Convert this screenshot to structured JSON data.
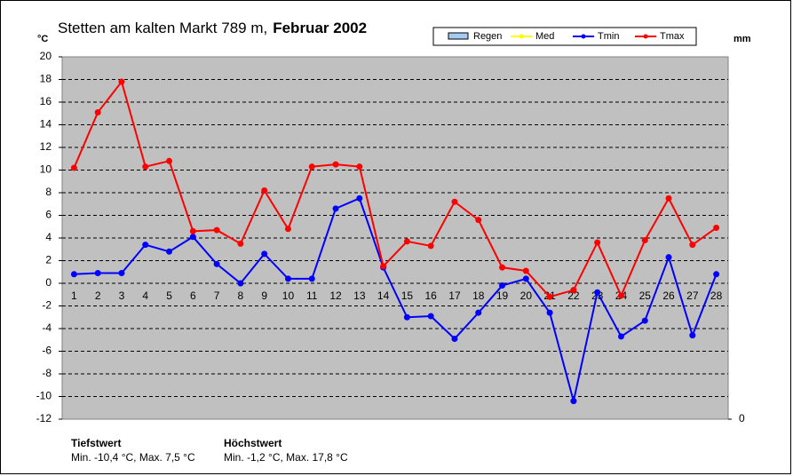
{
  "chart_data": {
    "type": "line",
    "title": [
      "Stetten am kalten Markt  789 m,",
      "Februar 2002"
    ],
    "ylabel": "°C",
    "y2label": "mm",
    "categories": [
      "1",
      "2",
      "3",
      "4",
      "5",
      "6",
      "7",
      "8",
      "9",
      "10",
      "11",
      "12",
      "13",
      "14",
      "15",
      "16",
      "17",
      "18",
      "19",
      "20",
      "21",
      "22",
      "23",
      "24",
      "25",
      "26",
      "27",
      "28"
    ],
    "series": [
      {
        "name": "Regen",
        "type": "bar",
        "color": "#a6caf0",
        "axis": "y2",
        "values": [
          null,
          null,
          null,
          null,
          null,
          null,
          null,
          null,
          null,
          null,
          null,
          null,
          null,
          null,
          null,
          null,
          null,
          null,
          null,
          null,
          null,
          null,
          null,
          null,
          null,
          null,
          null,
          null
        ]
      },
      {
        "name": "Med",
        "type": "line",
        "color": "#ffff00",
        "values": [
          null,
          null,
          null,
          null,
          null,
          null,
          null,
          null,
          null,
          null,
          null,
          null,
          null,
          null,
          null,
          null,
          null,
          null,
          null,
          null,
          null,
          null,
          null,
          null,
          null,
          null,
          null,
          null
        ]
      },
      {
        "name": "Tmin",
        "type": "line",
        "color": "#0000ff",
        "values": [
          0.8,
          0.9,
          0.9,
          3.4,
          2.8,
          4.1,
          1.7,
          0.0,
          2.6,
          0.4,
          0.4,
          6.6,
          7.5,
          1.4,
          -3.0,
          -2.9,
          -4.9,
          -2.6,
          -0.2,
          0.4,
          -2.6,
          -10.4,
          -0.8,
          -4.7,
          -3.3,
          2.3,
          -4.6,
          0.8
        ]
      },
      {
        "name": "Tmax",
        "type": "line",
        "color": "#ff0000",
        "values": [
          10.2,
          15.1,
          17.8,
          10.3,
          10.8,
          4.6,
          4.7,
          3.5,
          8.2,
          4.8,
          10.3,
          10.5,
          10.3,
          1.5,
          3.7,
          3.3,
          7.2,
          5.6,
          1.4,
          1.1,
          -1.2,
          -0.6,
          3.6,
          -1.1,
          3.8,
          7.5,
          3.4,
          4.9
        ]
      }
    ],
    "ylim": [
      -12,
      20
    ],
    "yticks": [
      -12,
      -10,
      -8,
      -6,
      -4,
      -2,
      0,
      2,
      4,
      6,
      8,
      10,
      12,
      14,
      16,
      18,
      20
    ],
    "y2lim": [
      0,
      10
    ],
    "y2ticks": [
      0
    ],
    "grid": true,
    "annotations": [
      {
        "heading": "Tiefstwert",
        "text": "Min. -10,4 °C, Max. 7,5 °C"
      },
      {
        "heading": "Höchstwert",
        "text": "Min. -1,2 °C, Max. 17,8 °C"
      }
    ]
  }
}
